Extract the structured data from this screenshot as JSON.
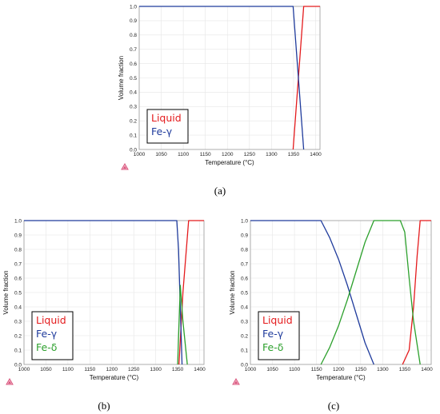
{
  "chart_data": [
    {
      "type": "line",
      "caption": "(a)",
      "xlabel": "Temperature (°C)",
      "ylabel": "Volume fraction",
      "xlim": [
        1000,
        1410
      ],
      "ylim": [
        0,
        1
      ],
      "xticks": [
        1000,
        1050,
        1100,
        1150,
        1200,
        1250,
        1300,
        1350,
        1400
      ],
      "yticks": [
        0,
        0.1,
        0.2,
        0.3,
        0.4,
        0.5,
        0.6,
        0.7,
        0.8,
        0.9,
        1.0
      ],
      "grid": true,
      "legend": "bottom-left",
      "series": [
        {
          "name": "Liquid",
          "color": "#e41a1c",
          "x": [
            1349,
            1361,
            1373,
            1410
          ],
          "y": [
            0,
            0.5,
            1,
            1
          ]
        },
        {
          "name": "Fe-γ",
          "color": "#1f3b9c",
          "x": [
            1000,
            1349,
            1361,
            1373
          ],
          "y": [
            1,
            1,
            0.5,
            0
          ]
        }
      ]
    },
    {
      "type": "line",
      "caption": "(b)",
      "xlabel": "Temperature (°C)",
      "ylabel": "Volume fraction",
      "xlim": [
        1000,
        1410
      ],
      "ylim": [
        0,
        1
      ],
      "xticks": [
        1000,
        1050,
        1100,
        1150,
        1200,
        1250,
        1300,
        1350,
        1400
      ],
      "yticks": [
        0,
        0.1,
        0.2,
        0.3,
        0.4,
        0.5,
        0.6,
        0.7,
        0.8,
        0.9,
        1.0
      ],
      "grid": true,
      "legend": "bottom-left",
      "series": [
        {
          "name": "Liquid",
          "color": "#e41a1c",
          "x": [
            1353,
            1362,
            1375,
            1410
          ],
          "y": [
            0,
            0.5,
            1,
            1
          ]
        },
        {
          "name": "Fe-γ",
          "color": "#1f3b9c",
          "x": [
            1000,
            1348,
            1352,
            1356,
            1360
          ],
          "y": [
            1,
            1,
            0.8,
            0.4,
            0
          ]
        },
        {
          "name": "Fe-δ",
          "color": "#2ca02c",
          "x": [
            1350,
            1356,
            1362,
            1372
          ],
          "y": [
            0,
            0.55,
            0.3,
            0
          ]
        }
      ]
    },
    {
      "type": "line",
      "caption": "(c)",
      "xlabel": "Temperature (°C)",
      "ylabel": "Volume fraction",
      "xlim": [
        1000,
        1410
      ],
      "ylim": [
        0,
        1
      ],
      "xticks": [
        1000,
        1050,
        1100,
        1150,
        1200,
        1250,
        1300,
        1350,
        1400
      ],
      "yticks": [
        0,
        0.1,
        0.2,
        0.3,
        0.4,
        0.5,
        0.6,
        0.7,
        0.8,
        0.9,
        1.0
      ],
      "grid": true,
      "legend": "bottom-left",
      "series": [
        {
          "name": "Liquid",
          "color": "#e41a1c",
          "x": [
            1345,
            1360,
            1370,
            1378,
            1385,
            1410
          ],
          "y": [
            0,
            0.1,
            0.4,
            0.75,
            1,
            1
          ]
        },
        {
          "name": "Fe-γ",
          "color": "#1f3b9c",
          "x": [
            1000,
            1160,
            1180,
            1200,
            1220,
            1240,
            1260,
            1280
          ],
          "y": [
            1,
            1,
            0.88,
            0.73,
            0.55,
            0.35,
            0.15,
            0
          ]
        },
        {
          "name": "Fe-δ",
          "color": "#2ca02c",
          "x": [
            1160,
            1180,
            1200,
            1220,
            1240,
            1260,
            1280,
            1340,
            1350,
            1360,
            1370,
            1385
          ],
          "y": [
            0,
            0.12,
            0.27,
            0.45,
            0.65,
            0.85,
            1,
            1,
            0.92,
            0.6,
            0.3,
            0
          ]
        }
      ]
    }
  ]
}
